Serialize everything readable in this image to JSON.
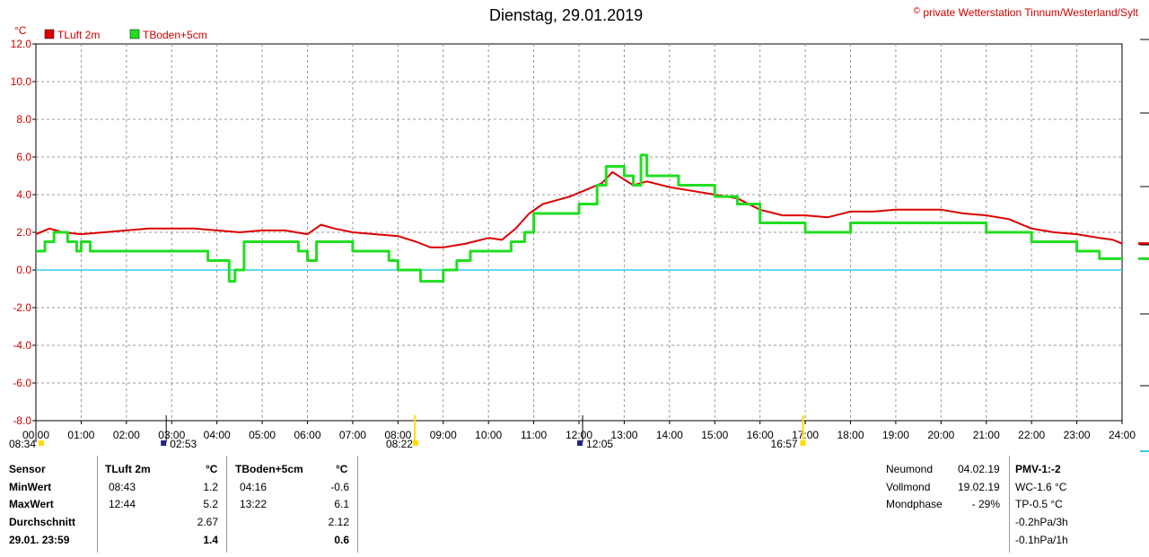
{
  "header": {
    "title": "Dienstag, 29.01.2019",
    "credit_symbol": "©",
    "credit": "private Wetterstation Tinnum/Westerland/Sylt"
  },
  "chart_data": {
    "type": "line",
    "ylabel": "°C",
    "ylim": [
      -8,
      12
    ],
    "xlim": [
      0,
      24
    ],
    "y_ticks": [
      "12.0",
      "10.0",
      "8.0",
      "6.0",
      "4.0",
      "2.0",
      "0.0",
      "-2.0",
      "-4.0",
      "-6.0",
      "-8.0"
    ],
    "x_ticks": [
      "00:00",
      "01:00",
      "02:00",
      "03:00",
      "04:00",
      "05:00",
      "06:00",
      "07:00",
      "08:00",
      "09:00",
      "10:00",
      "11:00",
      "12:00",
      "13:00",
      "14:00",
      "15:00",
      "16:00",
      "17:00",
      "18:00",
      "19:00",
      "20:00",
      "21:00",
      "22:00",
      "23:00",
      "24:00"
    ],
    "grid": true,
    "legend_placement": "top-left",
    "zero_line_color": "#33ccee",
    "sun_moon_events": [
      {
        "label": "08:34",
        "hour": 0.0,
        "kind": "moonrise"
      },
      {
        "label": "02:53",
        "hour": 2.88,
        "kind": "moonset"
      },
      {
        "label": "08:22",
        "hour": 8.37,
        "kind": "sunrise"
      },
      {
        "label": "12:05",
        "hour": 12.08,
        "kind": "moon-transit"
      },
      {
        "label": "16:57",
        "hour": 16.95,
        "kind": "sunset"
      }
    ],
    "series": [
      {
        "name": "TLuft 2m",
        "color": "#dd0000",
        "x": [
          0,
          0.3,
          0.6,
          1.0,
          1.5,
          2.0,
          2.5,
          3.0,
          3.5,
          4.0,
          4.5,
          5.0,
          5.5,
          6.0,
          6.3,
          6.6,
          7.0,
          7.5,
          8.0,
          8.4,
          8.72,
          9.0,
          9.5,
          10.0,
          10.3,
          10.6,
          10.9,
          11.2,
          11.5,
          11.8,
          12.0,
          12.3,
          12.5,
          12.74,
          13.0,
          13.2,
          13.5,
          14.0,
          14.5,
          15.0,
          15.5,
          16.0,
          16.5,
          17.0,
          17.5,
          18.0,
          18.5,
          19.0,
          19.5,
          20.0,
          20.5,
          21.0,
          21.5,
          22.0,
          22.5,
          23.0,
          23.5,
          23.8,
          24.0
        ],
        "values": [
          1.9,
          2.2,
          2.0,
          1.9,
          2.0,
          2.1,
          2.2,
          2.2,
          2.2,
          2.1,
          2.0,
          2.1,
          2.1,
          1.9,
          2.4,
          2.2,
          2.0,
          1.9,
          1.8,
          1.5,
          1.2,
          1.2,
          1.4,
          1.7,
          1.6,
          2.2,
          3.0,
          3.5,
          3.7,
          3.9,
          4.1,
          4.4,
          4.6,
          5.2,
          4.8,
          4.5,
          4.7,
          4.4,
          4.2,
          4.0,
          3.8,
          3.2,
          2.9,
          2.9,
          2.8,
          3.1,
          3.1,
          3.2,
          3.2,
          3.2,
          3.0,
          2.9,
          2.7,
          2.2,
          2.0,
          1.9,
          1.7,
          1.6,
          1.4
        ]
      },
      {
        "name": "TBoden+5cm",
        "color": "#22dd22",
        "x": [
          0,
          0.2,
          0.4,
          0.7,
          0.9,
          1.0,
          1.2,
          1.5,
          2.0,
          2.5,
          3.0,
          3.5,
          3.8,
          4.0,
          4.27,
          4.4,
          4.6,
          5.0,
          5.5,
          5.8,
          6.0,
          6.2,
          6.5,
          7.0,
          7.5,
          7.8,
          8.0,
          8.3,
          8.5,
          8.7,
          9.0,
          9.3,
          9.6,
          10.0,
          10.5,
          10.8,
          11.0,
          11.5,
          12.0,
          12.4,
          12.6,
          13.0,
          13.2,
          13.37,
          13.5,
          14.0,
          14.2,
          14.5,
          15.0,
          15.5,
          16.0,
          16.5,
          17.0,
          17.5,
          18.0,
          19.0,
          20.0,
          21.0,
          22.0,
          23.0,
          23.5,
          24.0
        ],
        "values": [
          1.0,
          1.5,
          2.0,
          1.5,
          1.0,
          1.5,
          1.0,
          1.0,
          1.0,
          1.0,
          1.0,
          1.0,
          0.5,
          0.5,
          -0.6,
          0.0,
          1.5,
          1.5,
          1.5,
          1.0,
          0.5,
          1.5,
          1.5,
          1.0,
          1.0,
          0.5,
          0.0,
          0.0,
          -0.6,
          -0.6,
          0.0,
          0.5,
          1.0,
          1.0,
          1.5,
          2.0,
          3.0,
          3.0,
          3.5,
          4.5,
          5.5,
          5.0,
          4.5,
          6.1,
          5.0,
          5.0,
          4.5,
          4.5,
          3.9,
          3.5,
          2.5,
          2.5,
          2.0,
          2.0,
          2.5,
          2.5,
          2.5,
          2.0,
          1.5,
          1.0,
          0.6,
          0.6
        ]
      }
    ]
  },
  "stats": {
    "labels": {
      "sensor": "Sensor",
      "min": "MinWert",
      "max": "MaxWert",
      "avg": "Durchschnitt",
      "now": "29.01. 23:59"
    },
    "col1": {
      "name": "TLuft 2m",
      "unit": "°C",
      "min_time": "08:43",
      "min": "1.2",
      "max_time": "12:44",
      "max": "5.2",
      "avg": "2.67",
      "now": "1.4"
    },
    "col2": {
      "name": "TBoden+5cm",
      "unit": "°C",
      "min_time": "04:16",
      "min": "-0.6",
      "max_time": "13:22",
      "max": "6.1",
      "avg": "2.12",
      "now": "0.6"
    }
  },
  "moon": {
    "new_label": "Neumond",
    "new_value": "04.02.19",
    "full_label": "Vollmond",
    "full_value": "19.02.19",
    "phase_label": "Mondphase",
    "phase_value": "- 29%"
  },
  "pmv": {
    "title": "PMV-1:-2",
    "wc": "WC-1.6 °C",
    "tp": "TP-0.5 °C",
    "p3h": "-0.2hPa/3h",
    "p1h": "-0.1hPa/1h"
  }
}
